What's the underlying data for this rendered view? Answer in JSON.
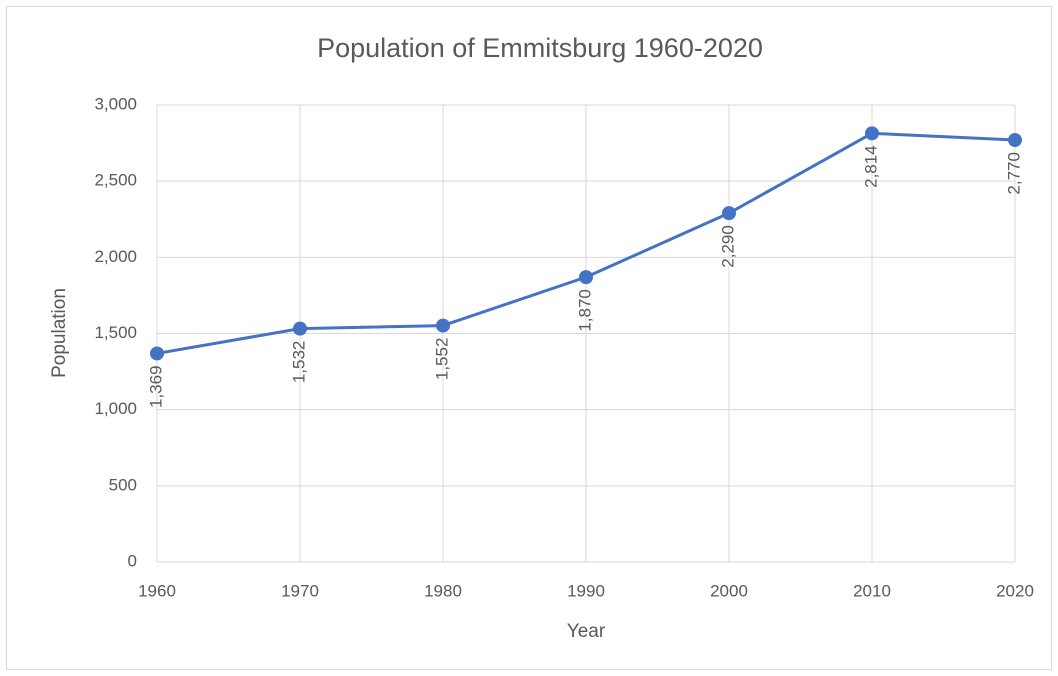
{
  "chart_data": {
    "type": "line",
    "title": "Population of Emmitsburg 1960-2020",
    "xlabel": "Year",
    "ylabel": "Population",
    "x": [
      1960,
      1970,
      1980,
      1990,
      2000,
      2010,
      2020
    ],
    "values": [
      1369,
      1532,
      1552,
      1870,
      2290,
      2814,
      2770
    ],
    "value_labels": [
      "1,369",
      "1,532",
      "1,552",
      "1,870",
      "2,290",
      "2,814",
      "2,770"
    ],
    "color": "#4472c4",
    "xlim": [
      1960,
      2020
    ],
    "xticks": [
      1960,
      1970,
      1980,
      1990,
      2000,
      2010,
      2020
    ],
    "ylim": [
      0,
      3000
    ],
    "yticks": [
      0,
      500,
      {
        "value": 1000,
        "label": "1,000"
      },
      {
        "value": 1500,
        "label": "1,500"
      },
      {
        "value": 2000,
        "label": "2,000"
      },
      {
        "value": 2500,
        "label": "2,500"
      },
      {
        "value": 3000,
        "label": "3,000"
      }
    ],
    "grid": true
  }
}
